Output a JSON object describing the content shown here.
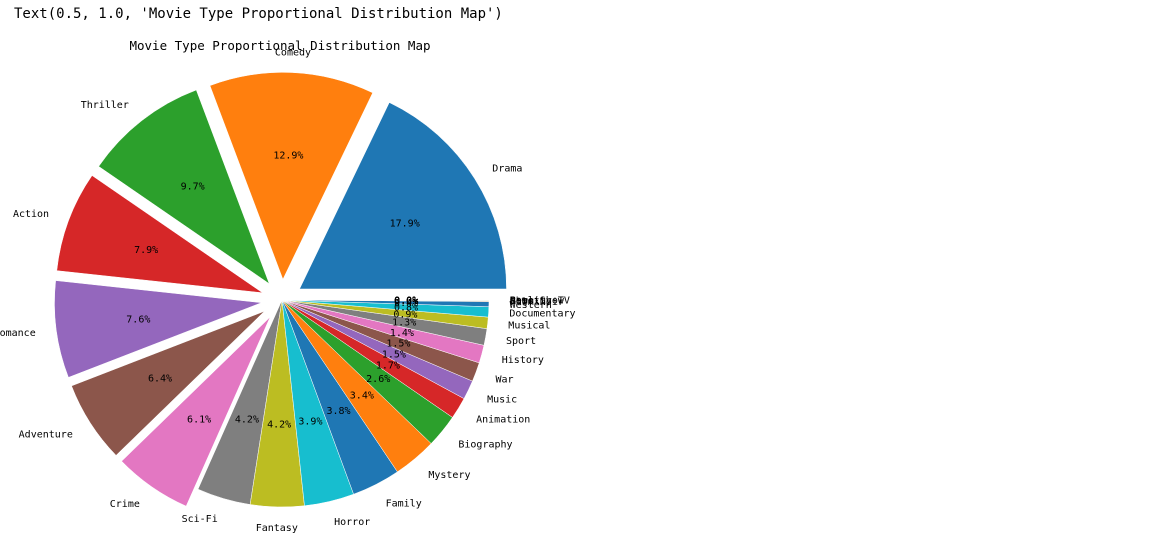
{
  "output_text": "Text(0.5, 1.0, 'Movie Type Proportional Distribution Map')",
  "chart_data": {
    "type": "pie",
    "title": "Movie Type Proportional Distribution Map",
    "autopct_format": "%.1f%%",
    "startangle_deg": 0,
    "direction": "counterclockwise",
    "explode": [
      0.1,
      0.1,
      0.1,
      0.1,
      0.1,
      0.1,
      0.1,
      0,
      0,
      0,
      0,
      0,
      0,
      0,
      0,
      0,
      0,
      0,
      0,
      0,
      0,
      0,
      0,
      0,
      0,
      0
    ],
    "categories": [
      "Drama",
      "Comedy",
      "Thriller",
      "Action",
      "Romance",
      "Adventure",
      "Crime",
      "Sci-Fi",
      "Fantasy",
      "Horror",
      "Family",
      "Mystery",
      "Biography",
      "Animation",
      "Music",
      "War",
      "History",
      "Sport",
      "Musical",
      "Documentary",
      "Western",
      "Film-Noir",
      "Short",
      "News",
      "Reality-TV",
      "Game-Show"
    ],
    "values": [
      17.9,
      12.9,
      9.7,
      7.9,
      7.6,
      6.4,
      6.1,
      4.2,
      4.2,
      3.9,
      3.8,
      3.4,
      2.6,
      1.7,
      1.5,
      1.5,
      1.4,
      1.3,
      0.9,
      0.8,
      0.4,
      0.05,
      0.04,
      0.01,
      0.01,
      0.01
    ],
    "pct_labels": [
      "17.9%",
      "12.9%",
      "9.7%",
      "7.9%",
      "7.6%",
      "6.4%",
      "6.1%",
      "4.2%",
      "4.2%",
      "3.9%",
      "3.8%",
      "3.4%",
      "2.6%",
      "1.7%",
      "1.5%",
      "1.5%",
      "1.4%",
      "1.3%",
      "0.9%",
      "0.8%",
      "0.4%",
      "0.0%",
      "0.0%",
      "0.0%",
      "0.0%",
      "0.0%"
    ],
    "colors": [
      "#1f77b4",
      "#ff7f0e",
      "#2ca02c",
      "#d62728",
      "#9467bd",
      "#8c564b",
      "#e377c2",
      "#7f7f7f",
      "#bcbd22",
      "#17becf"
    ],
    "edge_color": "#ffffff"
  }
}
